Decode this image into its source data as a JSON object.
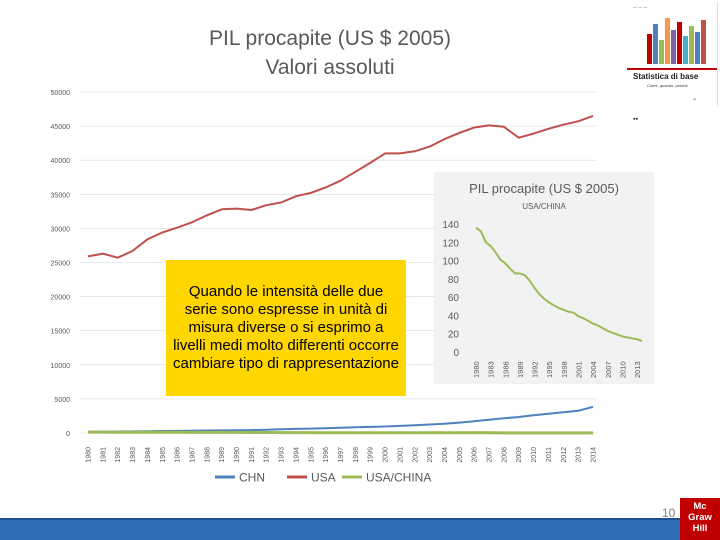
{
  "slide": {
    "title": "PIL procapite (US $ 2005)",
    "subtitle": "Valori assoluti",
    "callout": "Quando le intensità delle due serie sono espresse in unità di misura diverse o si esprimo a livelli medi molto differenti occorre cambiare tipo di rappresentazione",
    "page_number": "10"
  },
  "book": {
    "title": "Statistica di base",
    "subtitle": "Come, quando, perché"
  },
  "logo": {
    "line1": "Mc",
    "line2": "Graw",
    "line3": "Hill"
  },
  "colors": {
    "chn": "#4f81bd",
    "usa": "#c0504d",
    "usa_china": "#9bbb59",
    "callout": "#ffd600",
    "footer": "#2f6db5",
    "logo": "#c00000"
  },
  "chart_data": [
    {
      "type": "line",
      "title": "",
      "x": [
        "1980",
        "1981",
        "1982",
        "1983",
        "1984",
        "1985",
        "1986",
        "1987",
        "1988",
        "1989",
        "1990",
        "1991",
        "1992",
        "1993",
        "1994",
        "1995",
        "1996",
        "1997",
        "1998",
        "1999",
        "2000",
        "2001",
        "2002",
        "2003",
        "2004",
        "2005",
        "2006",
        "2007",
        "2008",
        "2009",
        "2010",
        "2011",
        "2012",
        "2013",
        "2014"
      ],
      "y_ticks": [
        "0",
        "5000",
        "10000",
        "15000",
        "20000",
        "25000",
        "30000",
        "35000",
        "40000",
        "45000",
        "50000"
      ],
      "ylim": [
        0,
        50000
      ],
      "series": [
        {
          "name": "CHN",
          "values": [
            190,
            200,
            215,
            230,
            260,
            290,
            310,
            340,
            370,
            380,
            390,
            420,
            480,
            540,
            600,
            650,
            710,
            770,
            830,
            890,
            960,
            1040,
            1130,
            1250,
            1370,
            1520,
            1720,
            1950,
            2150,
            2340,
            2600,
            2830,
            3050,
            3260,
            3820
          ]
        },
        {
          "name": "USA",
          "values": [
            25900,
            26300,
            25700,
            26700,
            28400,
            29400,
            30100,
            30900,
            31900,
            32800,
            32900,
            32700,
            33400,
            33800,
            34700,
            35200,
            36000,
            37000,
            38300,
            39600,
            41000,
            41000,
            41300,
            42000,
            43100,
            44000,
            44800,
            45100,
            44900,
            43300,
            43900,
            44600,
            45200,
            45700,
            46500
          ]
        },
        {
          "name": "USA/CHINA",
          "values": [
            136,
            132,
            120,
            116,
            109,
            101,
            97,
            91,
            86,
            86,
            84,
            78,
            70,
            63,
            58,
            54,
            51,
            48,
            46,
            44,
            43,
            39,
            37,
            34,
            31,
            29,
            26,
            23,
            21,
            19,
            17,
            16,
            15,
            14,
            12
          ]
        }
      ],
      "legend": "bottom"
    },
    {
      "type": "line",
      "title": "PIL procapite (US $ 2005)",
      "subtitle": "USA/CHINA",
      "x_ticks": [
        "1980",
        "1983",
        "1986",
        "1989",
        "1992",
        "1995",
        "1998",
        "2001",
        "2004",
        "2007",
        "2010",
        "2013"
      ],
      "y_ticks": [
        "0",
        "20",
        "40",
        "60",
        "80",
        "100",
        "120",
        "140"
      ],
      "ylim": [
        0,
        140
      ],
      "series": [
        {
          "name": "",
          "values": [
            136,
            132,
            120,
            116,
            109,
            101,
            97,
            91,
            86,
            86,
            84,
            78,
            70,
            63,
            58,
            54,
            51,
            48,
            46,
            44,
            43,
            39,
            37,
            34,
            31,
            29,
            26,
            23,
            21,
            19,
            17,
            16,
            15,
            14,
            12
          ]
        }
      ]
    }
  ]
}
